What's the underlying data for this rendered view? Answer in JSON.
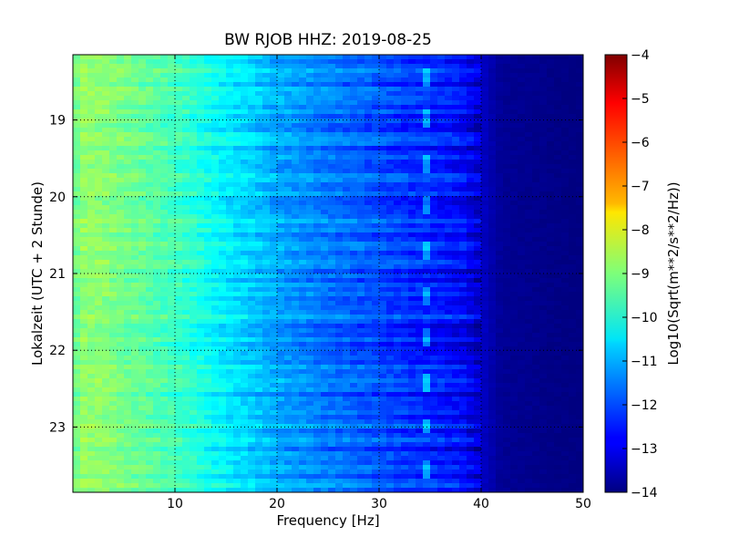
{
  "chart_data": {
    "type": "heatmap",
    "title": "BW RJOB HHZ: 2019-08-25",
    "xlabel": "Frequency [Hz]",
    "ylabel": "Lokalzeit (UTC + 2 Stunde)",
    "xlim": [
      0,
      50
    ],
    "ylim": [
      18.15,
      23.85
    ],
    "y_inverted": true,
    "x_ticks": [
      10,
      20,
      30,
      40,
      50
    ],
    "x_tick_labels": [
      "10",
      "20",
      "30",
      "40",
      "50"
    ],
    "y_ticks": [
      19,
      20,
      21,
      22,
      23
    ],
    "y_tick_labels": [
      "19",
      "20",
      "21",
      "22",
      "23"
    ],
    "grid": true,
    "colormap": "jet",
    "colorbar": {
      "label": "Log10(Sqrt(m**2/s**2/Hz))",
      "range": [
        -14,
        -4
      ],
      "ticks": [
        -4,
        -5,
        -6,
        -7,
        -8,
        -9,
        -10,
        -11,
        -12,
        -13,
        -14
      ],
      "tick_labels": [
        "−4",
        "−5",
        "−6",
        "−7",
        "−8",
        "−9",
        "−10",
        "−11",
        "−12",
        "−13",
        "−14"
      ]
    },
    "spectrum_profile": {
      "frequency_hz": [
        0,
        1,
        3,
        5,
        8,
        10,
        12,
        15,
        18,
        20,
        25,
        30,
        33,
        35,
        38,
        40,
        42,
        50
      ],
      "level": [
        -9.3,
        -8.8,
        -8.9,
        -9.1,
        -9.4,
        -9.6,
        -9.9,
        -10.4,
        -10.8,
        -11.1,
        -11.6,
        -12.0,
        -12.3,
        -12.4,
        -12.7,
        -13.3,
        -13.8,
        -14.0
      ]
    },
    "tonal_line_hz": 34.5
  }
}
